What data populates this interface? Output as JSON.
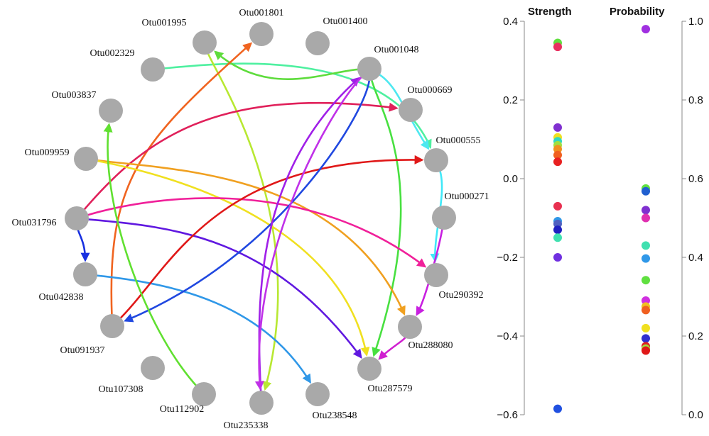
{
  "network": {
    "nodes": [
      {
        "id": "Otu001801",
        "label": "Otu001801"
      },
      {
        "id": "Otu001400",
        "label": "Otu001400"
      },
      {
        "id": "Otu001995",
        "label": "Otu001995"
      },
      {
        "id": "Otu001048",
        "label": "Otu001048"
      },
      {
        "id": "Otu002329",
        "label": "Otu002329"
      },
      {
        "id": "Otu000669",
        "label": "Otu000669"
      },
      {
        "id": "Otu003837",
        "label": "Otu003837"
      },
      {
        "id": "Otu000555",
        "label": "Otu000555"
      },
      {
        "id": "Otu009959",
        "label": "Otu009959"
      },
      {
        "id": "Otu000271",
        "label": "Otu000271"
      },
      {
        "id": "Otu031796",
        "label": "Otu031796"
      },
      {
        "id": "Otu290392",
        "label": "Otu290392"
      },
      {
        "id": "Otu042838",
        "label": "Otu042838"
      },
      {
        "id": "Otu288080",
        "label": "Otu288080"
      },
      {
        "id": "Otu091937",
        "label": "Otu091937"
      },
      {
        "id": "Otu287579",
        "label": "Otu287579"
      },
      {
        "id": "Otu107308",
        "label": "Otu107308"
      },
      {
        "id": "Otu112902",
        "label": "Otu112902"
      },
      {
        "id": "Otu235338",
        "label": "Otu235338"
      },
      {
        "id": "Otu238548",
        "label": "Otu238548"
      }
    ],
    "edges": [
      {
        "from": "Otu002329",
        "to": "Otu000555",
        "color": "#4ef0a0"
      },
      {
        "from": "Otu001048",
        "to": "Otu001995",
        "color": "#5edc3c"
      },
      {
        "from": "Otu001995",
        "to": "Otu235338",
        "color": "#b8e832"
      },
      {
        "from": "Otu091937",
        "to": "Otu001801",
        "color": "#f06420"
      },
      {
        "from": "Otu001048",
        "to": "Otu000555",
        "color": "#4ee8f0"
      },
      {
        "from": "Otu001048",
        "to": "Otu287579",
        "color": "#48e040"
      },
      {
        "from": "Otu031796",
        "to": "Otu000669",
        "color": "#e0205a"
      },
      {
        "from": "Otu009959",
        "to": "Otu288080",
        "color": "#f0a020"
      },
      {
        "from": "Otu009959",
        "to": "Otu287579",
        "color": "#f0e020"
      },
      {
        "from": "Otu031796",
        "to": "Otu290392",
        "color": "#f0209a"
      },
      {
        "from": "Otu031796",
        "to": "Otu287579",
        "color": "#6018e0"
      },
      {
        "from": "Otu031796",
        "to": "Otu042838",
        "color": "#1830e0"
      },
      {
        "from": "Otu042838",
        "to": "Otu238548",
        "color": "#3098e8"
      },
      {
        "from": "Otu091937",
        "to": "Otu000555",
        "color": "#e01818"
      },
      {
        "from": "Otu001048",
        "to": "Otu091937",
        "color": "#2048e0"
      },
      {
        "from": "Otu235338",
        "to": "Otu001048",
        "color": "#a020e8"
      },
      {
        "from": "Otu112902",
        "to": "Otu003837",
        "color": "#60e030"
      },
      {
        "from": "Otu000555",
        "to": "Otu290392",
        "color": "#40e8f8"
      },
      {
        "from": "Otu000271",
        "to": "Otu288080",
        "color": "#c820e0"
      },
      {
        "from": "Otu288080",
        "to": "Otu287579",
        "color": "#d020d0"
      },
      {
        "from": "Otu001048",
        "to": "Otu235338",
        "color": "#c030e8"
      }
    ]
  },
  "legend": {
    "strength_title": "Strength",
    "probability_title": "Probability",
    "strength_ticks": [
      "0.4",
      "0.2",
      "0.0",
      "−0.2",
      "−0.4",
      "−0.6"
    ],
    "probability_ticks": [
      "1.0",
      "0.8",
      "0.6",
      "0.4",
      "0.2",
      "0.0"
    ],
    "strength_points": [
      {
        "value": 0.345,
        "color": "#60e040"
      },
      {
        "value": 0.335,
        "color": "#e83060"
      },
      {
        "value": 0.13,
        "color": "#8030d0"
      },
      {
        "value": 0.105,
        "color": "#f0e020"
      },
      {
        "value": 0.095,
        "color": "#30d8c0"
      },
      {
        "value": 0.085,
        "color": "#a0e040"
      },
      {
        "value": 0.075,
        "color": "#f09020"
      },
      {
        "value": 0.06,
        "color": "#f06020"
      },
      {
        "value": 0.043,
        "color": "#e82020"
      },
      {
        "value": -0.07,
        "color": "#e83050"
      },
      {
        "value": -0.108,
        "color": "#3098e8"
      },
      {
        "value": -0.115,
        "color": "#5060c0"
      },
      {
        "value": -0.13,
        "color": "#2020c0"
      },
      {
        "value": -0.15,
        "color": "#40e0b0"
      },
      {
        "value": -0.2,
        "color": "#7030e0"
      },
      {
        "value": -0.585,
        "color": "#2050e0"
      }
    ],
    "probability_points": [
      {
        "value": 0.98,
        "color": "#a030e0"
      },
      {
        "value": 0.575,
        "color": "#60e040"
      },
      {
        "value": 0.568,
        "color": "#2060d0"
      },
      {
        "value": 0.52,
        "color": "#8030d0"
      },
      {
        "value": 0.5,
        "color": "#e030b0"
      },
      {
        "value": 0.43,
        "color": "#40e0b0"
      },
      {
        "value": 0.397,
        "color": "#3098e8"
      },
      {
        "value": 0.342,
        "color": "#60e040"
      },
      {
        "value": 0.29,
        "color": "#d030e0"
      },
      {
        "value": 0.275,
        "color": "#f0c020"
      },
      {
        "value": 0.266,
        "color": "#f06020"
      },
      {
        "value": 0.22,
        "color": "#f0e020"
      },
      {
        "value": 0.194,
        "color": "#3030d0"
      },
      {
        "value": 0.174,
        "color": "#e02020"
      },
      {
        "value": 0.168,
        "color": "#a0e040"
      },
      {
        "value": 0.163,
        "color": "#e01818"
      }
    ]
  }
}
